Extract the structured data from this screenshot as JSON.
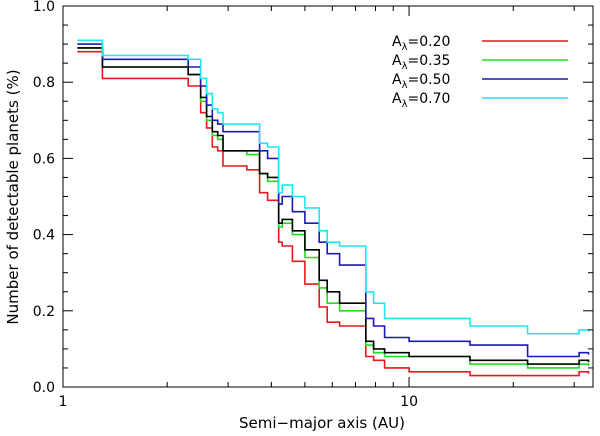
{
  "chart_data": {
    "type": "line",
    "title": "",
    "xlabel": "Semi−major axis (AU)",
    "ylabel": "Number of detectable planets (%)",
    "xscale": "log",
    "xlim": [
      1,
      34
    ],
    "ylim": [
      0.0,
      1.0
    ],
    "x_ticks": [
      1,
      10
    ],
    "x_tick_labels": [
      "1",
      "10"
    ],
    "y_ticks": [
      0.0,
      0.2,
      0.4,
      0.6,
      0.8,
      1.0
    ],
    "y_tick_labels": [
      "0.0",
      "0.2",
      "0.4",
      "0.6",
      "0.8",
      "1.0"
    ],
    "grid": false,
    "legend_position": "top-right",
    "legend_prefix": "A",
    "legend_subscript": "λ",
    "series": [
      {
        "name": "Aλ=0.20",
        "legend_value": "=0.20",
        "color": "#e41a1c",
        "in_legend": true,
        "points": [
          [
            1.1,
            0.88
          ],
          [
            1.3,
            0.81
          ],
          [
            2.3,
            0.79
          ],
          [
            2.5,
            0.72
          ],
          [
            2.6,
            0.68
          ],
          [
            2.7,
            0.63
          ],
          [
            2.8,
            0.62
          ],
          [
            2.9,
            0.58
          ],
          [
            3.4,
            0.57
          ],
          [
            3.7,
            0.51
          ],
          [
            3.9,
            0.49
          ],
          [
            4.2,
            0.38
          ],
          [
            4.3,
            0.37
          ],
          [
            4.6,
            0.33
          ],
          [
            5.0,
            0.27
          ],
          [
            5.5,
            0.21
          ],
          [
            5.8,
            0.17
          ],
          [
            6.3,
            0.16
          ],
          [
            7.0,
            0.16
          ],
          [
            7.5,
            0.08
          ],
          [
            7.9,
            0.07
          ],
          [
            8.5,
            0.05
          ],
          [
            10,
            0.04
          ],
          [
            15,
            0.03
          ],
          [
            25,
            0.03
          ],
          [
            31,
            0.04
          ],
          [
            33,
            0.035
          ]
        ]
      },
      {
        "name": "Aλ=0.35",
        "legend_value": "=0.35",
        "color": "#22dd22",
        "in_legend": true,
        "points": [
          [
            1.1,
            0.89
          ],
          [
            1.3,
            0.84
          ],
          [
            2.3,
            0.82
          ],
          [
            2.5,
            0.75
          ],
          [
            2.6,
            0.7
          ],
          [
            2.7,
            0.66
          ],
          [
            2.8,
            0.65
          ],
          [
            2.9,
            0.62
          ],
          [
            3.4,
            0.61
          ],
          [
            3.7,
            0.56
          ],
          [
            3.9,
            0.54
          ],
          [
            4.2,
            0.42
          ],
          [
            4.3,
            0.43
          ],
          [
            4.6,
            0.4
          ],
          [
            5.0,
            0.34
          ],
          [
            5.5,
            0.26
          ],
          [
            5.8,
            0.22
          ],
          [
            6.3,
            0.2
          ],
          [
            7.0,
            0.2
          ],
          [
            7.5,
            0.11
          ],
          [
            7.9,
            0.09
          ],
          [
            8.5,
            0.08
          ],
          [
            10,
            0.08
          ],
          [
            15,
            0.06
          ],
          [
            22,
            0.05
          ],
          [
            25,
            0.05
          ],
          [
            31,
            0.06
          ],
          [
            33,
            0.055
          ]
        ]
      },
      {
        "name": "",
        "legend_value": "",
        "color": "#000000",
        "in_legend": false,
        "points": [
          [
            1.1,
            0.89
          ],
          [
            1.3,
            0.84
          ],
          [
            2.3,
            0.82
          ],
          [
            2.5,
            0.76
          ],
          [
            2.6,
            0.71
          ],
          [
            2.7,
            0.67
          ],
          [
            2.8,
            0.66
          ],
          [
            2.9,
            0.62
          ],
          [
            3.4,
            0.62
          ],
          [
            3.7,
            0.56
          ],
          [
            3.9,
            0.55
          ],
          [
            4.2,
            0.43
          ],
          [
            4.3,
            0.44
          ],
          [
            4.6,
            0.41
          ],
          [
            5.0,
            0.36
          ],
          [
            5.5,
            0.28
          ],
          [
            5.8,
            0.25
          ],
          [
            6.3,
            0.22
          ],
          [
            7.0,
            0.22
          ],
          [
            7.5,
            0.12
          ],
          [
            7.9,
            0.1
          ],
          [
            8.5,
            0.09
          ],
          [
            10,
            0.08
          ],
          [
            15,
            0.07
          ],
          [
            22,
            0.06
          ],
          [
            25,
            0.06
          ],
          [
            31,
            0.07
          ],
          [
            33,
            0.065
          ]
        ]
      },
      {
        "name": "Aλ=0.50",
        "legend_value": "=0.50",
        "color": "#1a1ab4",
        "in_legend": true,
        "points": [
          [
            1.1,
            0.9
          ],
          [
            1.3,
            0.86
          ],
          [
            2.3,
            0.84
          ],
          [
            2.5,
            0.79
          ],
          [
            2.6,
            0.74
          ],
          [
            2.7,
            0.7
          ],
          [
            2.8,
            0.69
          ],
          [
            2.9,
            0.67
          ],
          [
            3.4,
            0.67
          ],
          [
            3.7,
            0.62
          ],
          [
            3.9,
            0.6
          ],
          [
            4.2,
            0.48
          ],
          [
            4.3,
            0.5
          ],
          [
            4.6,
            0.46
          ],
          [
            5.0,
            0.43
          ],
          [
            5.5,
            0.38
          ],
          [
            5.8,
            0.35
          ],
          [
            6.3,
            0.32
          ],
          [
            7.0,
            0.32
          ],
          [
            7.5,
            0.18
          ],
          [
            7.9,
            0.16
          ],
          [
            8.5,
            0.13
          ],
          [
            10,
            0.12
          ],
          [
            15,
            0.11
          ],
          [
            22,
            0.08
          ],
          [
            25,
            0.08
          ],
          [
            31,
            0.09
          ],
          [
            33,
            0.085
          ]
        ]
      },
      {
        "name": "Aλ=0.70",
        "legend_value": "=0.70",
        "color": "#22e6ee",
        "in_legend": true,
        "points": [
          [
            1.1,
            0.91
          ],
          [
            1.3,
            0.87
          ],
          [
            2.3,
            0.86
          ],
          [
            2.5,
            0.81
          ],
          [
            2.6,
            0.77
          ],
          [
            2.7,
            0.73
          ],
          [
            2.8,
            0.72
          ],
          [
            2.9,
            0.69
          ],
          [
            3.4,
            0.69
          ],
          [
            3.7,
            0.64
          ],
          [
            3.9,
            0.63
          ],
          [
            4.2,
            0.51
          ],
          [
            4.3,
            0.53
          ],
          [
            4.6,
            0.5
          ],
          [
            5.0,
            0.47
          ],
          [
            5.5,
            0.41
          ],
          [
            5.8,
            0.38
          ],
          [
            6.3,
            0.37
          ],
          [
            7.0,
            0.37
          ],
          [
            7.5,
            0.25
          ],
          [
            7.9,
            0.22
          ],
          [
            8.5,
            0.18
          ],
          [
            10,
            0.18
          ],
          [
            15,
            0.16
          ],
          [
            22,
            0.14
          ],
          [
            25,
            0.14
          ],
          [
            31,
            0.15
          ],
          [
            33,
            0.145
          ]
        ]
      }
    ]
  }
}
